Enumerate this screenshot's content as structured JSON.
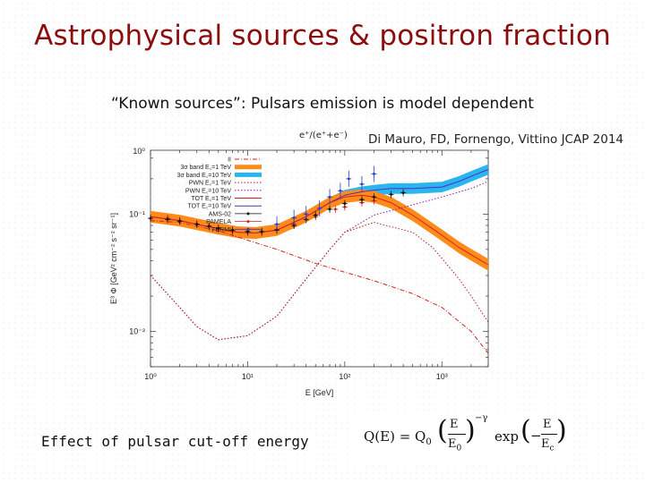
{
  "slide": {
    "title": "Astrophysical sources & positron fraction",
    "subtitle": "“Known sources”: Pulsars emission is model dependent",
    "citation": "Di Mauro, FD, Fornengo, Vittino JCAP 2014",
    "caption": "Effect of pulsar cut-off energy",
    "formula": {
      "lhs": "Q(E) = Q",
      "sub0": "0",
      "frac_num": "E",
      "frac_den": "E",
      "frac_den_sub": "0",
      "exponent": "−γ",
      "exp_word": "exp",
      "exp_num": "E",
      "exp_den": "E",
      "exp_den_sub": "c"
    }
  },
  "chart_data": {
    "type": "line",
    "title": "e⁺/(e⁺+e⁻)",
    "xlabel": "E [GeV]",
    "ylabel": "E³ Φ [GeV² cm⁻² s⁻² sr⁻¹]",
    "xscale": "log",
    "yscale": "log",
    "xlim": [
      1,
      3000
    ],
    "ylim": [
      0.005,
      0.35
    ],
    "x_ticks": [
      "10⁰",
      "10¹",
      "10²",
      "10³"
    ],
    "y_ticks": [
      "10⁻²",
      "10⁻¹",
      "10⁰"
    ],
    "legend_position": "top-left",
    "legend": [
      {
        "name": "II",
        "color": "#d62020",
        "style": "dash-dot"
      },
      {
        "name": "3σ band E꜀=1 TeV",
        "color": "#ff8c1a",
        "style": "band"
      },
      {
        "name": "3σ band E꜀=10 TeV",
        "color": "#29b6f0",
        "style": "band"
      },
      {
        "name": "PWN E꜀=1 TeV",
        "color": "#b02020",
        "style": "dotted"
      },
      {
        "name": "PWN E꜀=10 TeV",
        "color": "#9020a0",
        "style": "dotted"
      },
      {
        "name": "TOT E꜀=1 TeV",
        "color": "#d62020",
        "style": "solid"
      },
      {
        "name": "TOT E꜀=10 TeV",
        "color": "#5a2bb8",
        "style": "solid"
      },
      {
        "name": "AMS-02",
        "color": "#111111",
        "style": "points"
      },
      {
        "name": "PAMELA",
        "color": "#d62020",
        "style": "points"
      },
      {
        "name": "FERMI",
        "color": "#2a3fd0",
        "style": "points"
      }
    ],
    "series": [
      {
        "name": "TOT E꜀=10 TeV",
        "color": "#5a2bb8",
        "band_color": "#29b6f0",
        "x": [
          1,
          2,
          3,
          5,
          8,
          12,
          20,
          40,
          70,
          100,
          150,
          200,
          300,
          500,
          1000,
          1500,
          2000,
          3000
        ],
        "y": [
          0.095,
          0.088,
          0.082,
          0.075,
          0.07,
          0.069,
          0.073,
          0.095,
          0.125,
          0.145,
          0.155,
          0.16,
          0.165,
          0.165,
          0.17,
          0.19,
          0.21,
          0.24
        ],
        "band_halfwidth_dex": 0.045
      },
      {
        "name": "TOT E꜀=1 TeV",
        "color": "#d62020",
        "band_color": "#ff8c1a",
        "x": [
          1,
          2,
          3,
          5,
          8,
          12,
          20,
          40,
          70,
          100,
          150,
          200,
          300,
          500,
          800,
          1000,
          1500,
          2000,
          3000
        ],
        "y": [
          0.095,
          0.088,
          0.082,
          0.075,
          0.07,
          0.069,
          0.073,
          0.095,
          0.125,
          0.14,
          0.145,
          0.14,
          0.125,
          0.098,
          0.075,
          0.066,
          0.052,
          0.045,
          0.037
        ],
        "band_halfwidth_dex": 0.05
      },
      {
        "name": "II",
        "color": "#d62020",
        "x": [
          1,
          2,
          5,
          10,
          20,
          50,
          100,
          200,
          500,
          1000,
          2000,
          3000
        ],
        "y": [
          0.088,
          0.085,
          0.072,
          0.06,
          0.05,
          0.038,
          0.032,
          0.027,
          0.021,
          0.016,
          0.01,
          0.0065
        ]
      },
      {
        "name": "PWN E꜀=10 TeV",
        "color": "#9020a0",
        "x": [
          1,
          2,
          3,
          5,
          10,
          20,
          40,
          70,
          100,
          200,
          500,
          1000,
          2000,
          3000
        ],
        "y": [
          0.03,
          0.016,
          0.011,
          0.0085,
          0.0092,
          0.0135,
          0.028,
          0.05,
          0.07,
          0.098,
          0.12,
          0.14,
          0.165,
          0.19
        ]
      },
      {
        "name": "PWN E꜀=1 TeV",
        "color": "#b02020",
        "x": [
          1,
          2,
          3,
          5,
          10,
          20,
          40,
          70,
          100,
          200,
          500,
          800,
          1000,
          1500,
          2000,
          3000
        ],
        "y": [
          0.03,
          0.016,
          0.011,
          0.0085,
          0.0092,
          0.0135,
          0.028,
          0.05,
          0.07,
          0.085,
          0.07,
          0.052,
          0.042,
          0.028,
          0.02,
          0.012
        ]
      },
      {
        "name": "PAMELA",
        "color": "#d62020",
        "x": [
          1.5,
          2,
          3,
          4,
          5,
          7,
          10,
          14,
          20,
          30,
          50,
          80,
          100,
          150,
          200
        ],
        "y": [
          0.092,
          0.088,
          0.082,
          0.078,
          0.074,
          0.071,
          0.07,
          0.07,
          0.074,
          0.082,
          0.095,
          0.11,
          0.115,
          0.125,
          0.13
        ]
      },
      {
        "name": "AMS-02",
        "color": "#111111",
        "x": [
          1,
          1.5,
          2,
          3,
          4,
          5,
          7,
          10,
          14,
          20,
          30,
          40,
          50,
          70,
          100,
          150,
          200,
          300,
          400
        ],
        "y": [
          0.092,
          0.09,
          0.087,
          0.082,
          0.079,
          0.076,
          0.073,
          0.071,
          0.071,
          0.073,
          0.08,
          0.09,
          0.098,
          0.11,
          0.123,
          0.133,
          0.14,
          0.147,
          0.152
        ]
      },
      {
        "name": "FERMI",
        "color": "#2a3fd0",
        "x": [
          20,
          30,
          40,
          55,
          70,
          90,
          110,
          150,
          200
        ],
        "y": [
          0.082,
          0.093,
          0.1,
          0.112,
          0.14,
          0.158,
          0.2,
          0.18,
          0.22
        ]
      }
    ]
  }
}
